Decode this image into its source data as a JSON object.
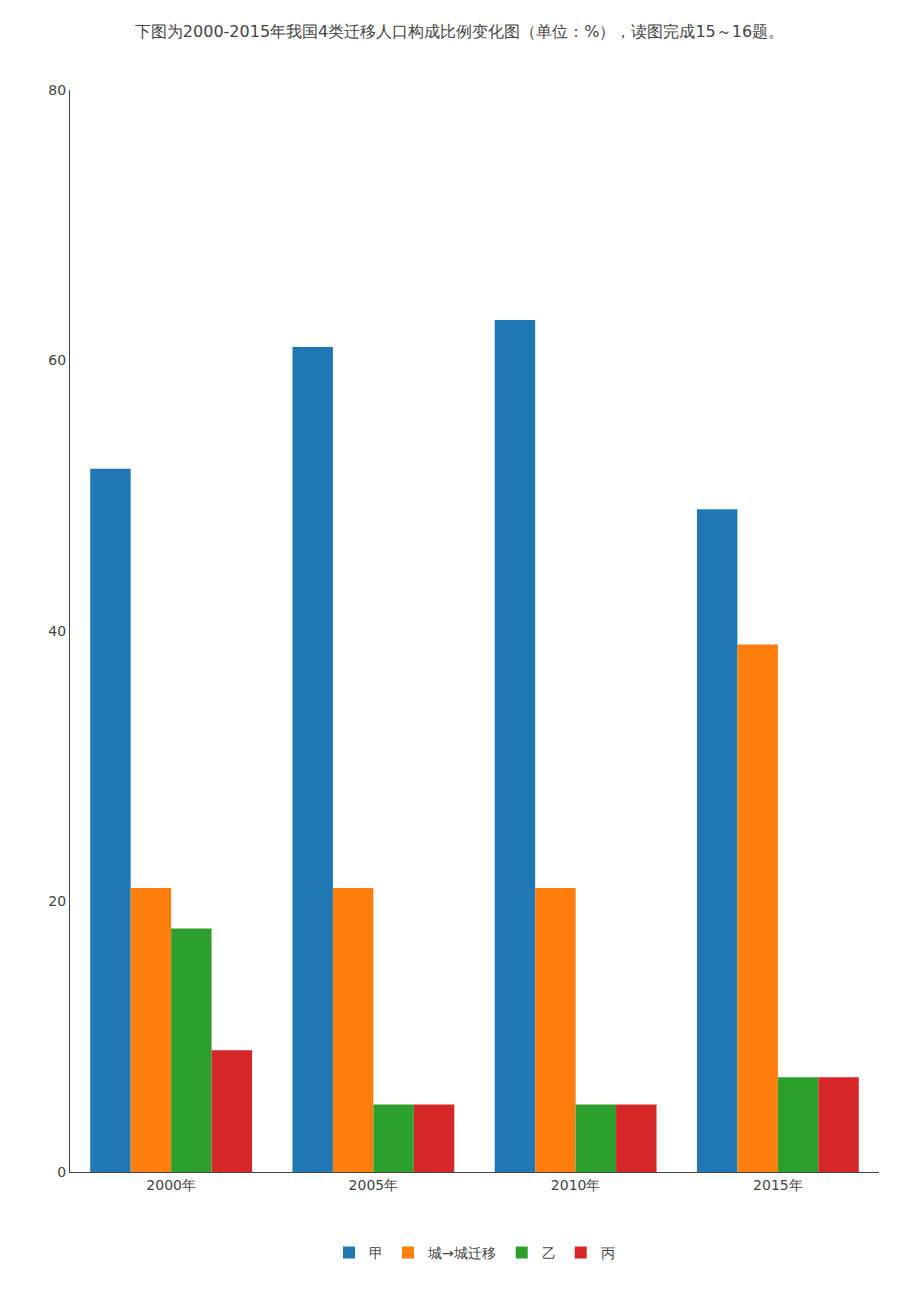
{
  "chart_data": {
    "type": "bar",
    "title": "下图为2000-2015年我国4类迁移人口构成比例变化图（单位：%），读图完成15～16题。",
    "categories": [
      "2000年",
      "2005年",
      "2010年",
      "2015年"
    ],
    "series": [
      {
        "name": "甲",
        "values": [
          52,
          61,
          63,
          49
        ]
      },
      {
        "name": "城→城迁移",
        "values": [
          21,
          21,
          21,
          39
        ]
      },
      {
        "name": "乙",
        "values": [
          18,
          5,
          5,
          7
        ]
      },
      {
        "name": "丙",
        "values": [
          9,
          5,
          5,
          7
        ]
      }
    ],
    "ylim": [
      0,
      80
    ],
    "yticks": [
      0,
      20,
      40,
      60,
      80
    ],
    "grid": false,
    "legend": "bottom"
  }
}
